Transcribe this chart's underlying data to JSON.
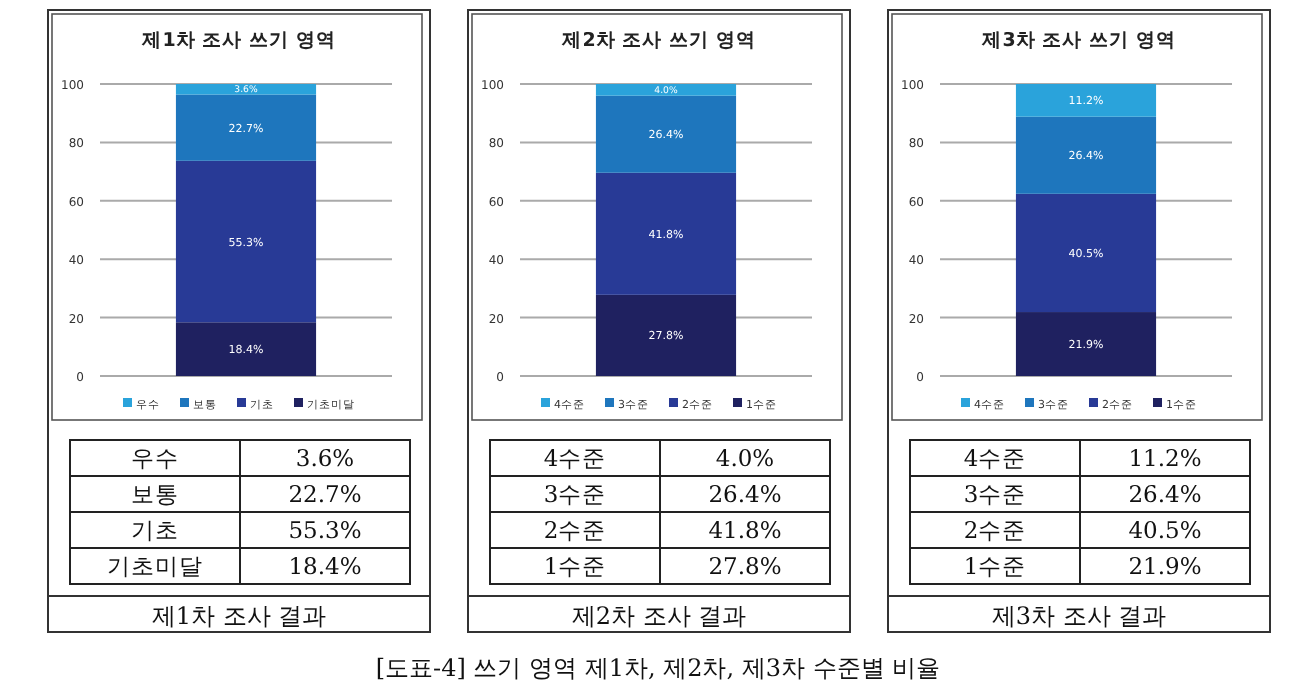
{
  "chart_data": [
    {
      "type": "bar",
      "stacked": true,
      "title": "제1차 조사 쓰기 영역",
      "categories": [
        null
      ],
      "ylim": [
        0,
        100
      ],
      "yticks": [
        0,
        20,
        40,
        60,
        80,
        100
      ],
      "grid": "y",
      "legend": "bottom",
      "annotations": [
        "제1차 조사 결과"
      ],
      "series": [
        {
          "name": "기초미달",
          "color": "#1f2160",
          "values": [
            18.4
          ],
          "value_labels": [
            "18.4%"
          ]
        },
        {
          "name": "기초",
          "color": "#283a96",
          "values": [
            55.3
          ],
          "value_labels": [
            "55.3%"
          ]
        },
        {
          "name": "보통",
          "color": "#1e76bd",
          "values": [
            22.7
          ],
          "value_labels": [
            "22.7%"
          ]
        },
        {
          "name": "우수",
          "color": "#2aa3db",
          "values": [
            3.6
          ],
          "value_labels": [
            "3.6%"
          ]
        }
      ]
    },
    {
      "type": "bar",
      "stacked": true,
      "title": "제2차 조사 쓰기 영역",
      "categories": [
        null
      ],
      "ylim": [
        0,
        100
      ],
      "yticks": [
        0,
        20,
        40,
        60,
        80,
        100
      ],
      "grid": "y",
      "legend": "bottom",
      "annotations": [
        "제2차 조사 결과",
        "[도표-4] 쓰기 영역 제1차, 제2차, 제3차 수준별 비율"
      ],
      "series": [
        {
          "name": "1수준",
          "color": "#1f2160",
          "values": [
            27.8
          ],
          "value_labels": [
            "27.8%"
          ]
        },
        {
          "name": "2수준",
          "color": "#283a96",
          "values": [
            41.8
          ],
          "value_labels": [
            "41.8%"
          ]
        },
        {
          "name": "3수준",
          "color": "#1e76bd",
          "values": [
            26.4
          ],
          "value_labels": [
            "26.4%"
          ]
        },
        {
          "name": "4수준",
          "color": "#2aa3db",
          "values": [
            4.0
          ],
          "value_labels": [
            "4.0%"
          ]
        }
      ]
    },
    {
      "type": "bar",
      "stacked": true,
      "title": "제3차 조사 쓰기 영역",
      "categories": [
        null
      ],
      "ylim": [
        0,
        100
      ],
      "yticks": [
        0,
        20,
        40,
        60,
        80,
        100
      ],
      "grid": "y",
      "legend": "bottom",
      "annotations": [
        "제3차 조사 결과"
      ],
      "series": [
        {
          "name": "1수준",
          "color": "#1f2160",
          "values": [
            21.9
          ],
          "value_labels": [
            "21.9%"
          ]
        },
        {
          "name": "2수준",
          "color": "#283a96",
          "values": [
            40.5
          ],
          "value_labels": [
            "40.5%"
          ]
        },
        {
          "name": "3수준",
          "color": "#1e76bd",
          "values": [
            26.4
          ],
          "value_labels": [
            "26.4%"
          ]
        },
        {
          "name": "4수준",
          "color": "#2aa3db",
          "values": [
            11.2
          ],
          "value_labels": [
            "11.2%"
          ]
        }
      ]
    }
  ]
}
